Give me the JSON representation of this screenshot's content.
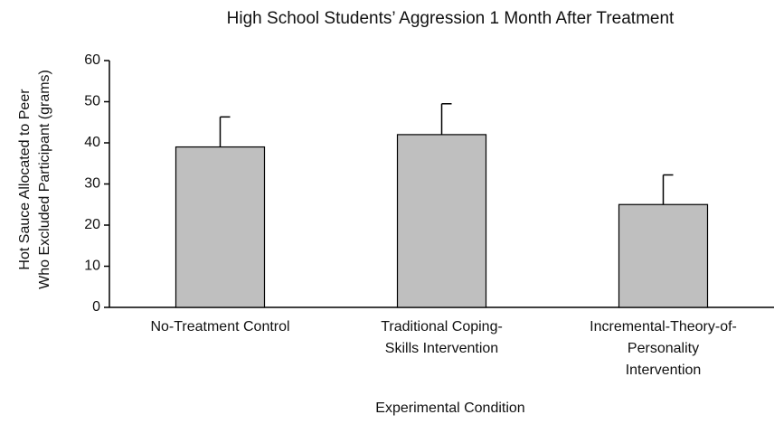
{
  "chart_data": {
    "type": "bar",
    "title": "High School Students’ Aggression 1 Month After Treatment",
    "xlabel": "Experimental Condition",
    "ylabel": [
      "Hot Sauce Allocated to Peer",
      "Who Excluded Participant (grams)"
    ],
    "categories": [
      [
        "No-Treatment Control"
      ],
      [
        "Traditional Coping-",
        "Skills Intervention"
      ],
      [
        "Incremental-Theory-of-",
        "Personality",
        "Intervention"
      ]
    ],
    "values": [
      39,
      42,
      25
    ],
    "errors": [
      7.3,
      7.5,
      7.2
    ],
    "color": "#bfbfbf",
    "ylim": [
      0,
      60
    ],
    "yticks": [
      0,
      10,
      20,
      30,
      40,
      50,
      60
    ],
    "grid": false
  }
}
